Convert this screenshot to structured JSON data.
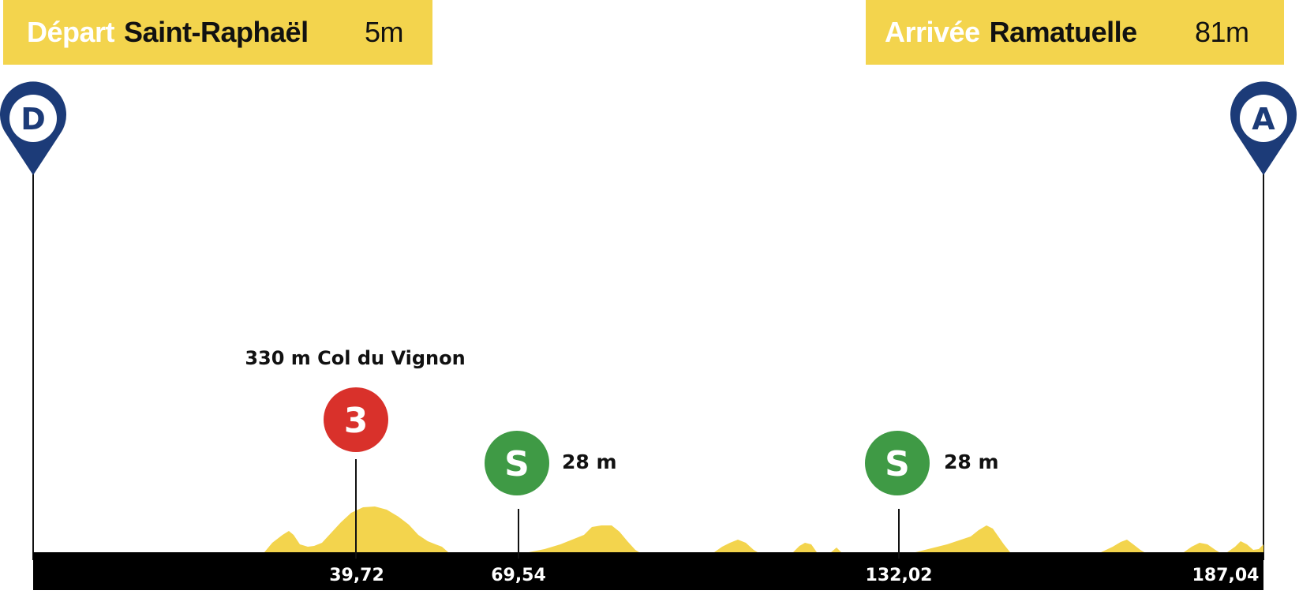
{
  "start": {
    "keyword": "Départ",
    "city": "Saint-Raphaël",
    "altitude": "5m",
    "pin_letter": "D"
  },
  "finish": {
    "keyword": "Arrivée",
    "city": "Ramatuelle",
    "altitude": "81m",
    "pin_letter": "A"
  },
  "climb": {
    "title": "330 m Col du Vignon",
    "category": "3",
    "km": "39,72"
  },
  "sprints": [
    {
      "letter": "S",
      "altitude": "28 m",
      "km": "69,54"
    },
    {
      "letter": "S",
      "altitude": "28 m",
      "km": "132,02"
    }
  ],
  "finish_km": "187,04",
  "colors": {
    "banner": "#f3d44d",
    "terrain": "#f3d44d",
    "pin": "#1c3b78",
    "climb_badge": "#d9312b",
    "sprint_badge": "#3f9a45",
    "axis_bar": "#000000"
  }
}
